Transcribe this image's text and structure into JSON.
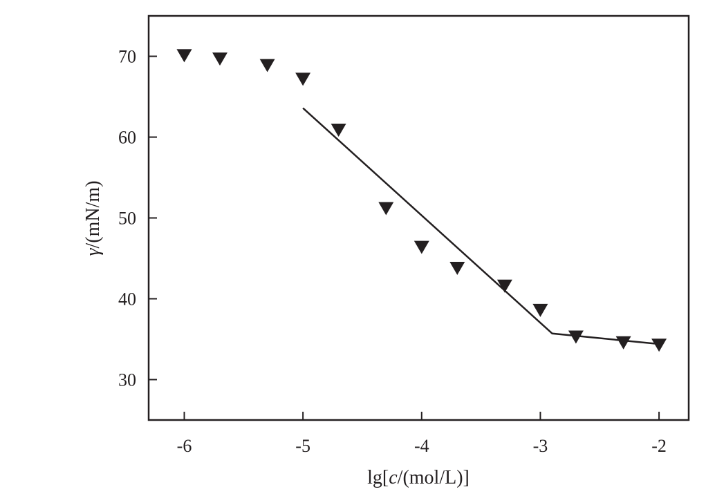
{
  "chart_data": {
    "type": "scatter",
    "xlabel_parts": [
      "lg[",
      "c",
      "/(mol/L)]"
    ],
    "ylabel_parts": [
      "γ",
      "/(mN/m)"
    ],
    "xlim": [
      -6.3,
      -1.75
    ],
    "ylim": [
      25,
      75
    ],
    "xticks": [
      -6,
      -5,
      -4,
      -3,
      -2
    ],
    "xtick_labels": [
      "-6",
      "-5",
      "-4",
      "-3",
      "-2"
    ],
    "yticks": [
      30,
      40,
      50,
      60,
      70
    ],
    "ytick_labels": [
      "30",
      "40",
      "50",
      "60",
      "70"
    ],
    "grid": false,
    "series": [
      {
        "marker": "triangle-down",
        "color": "#231f20",
        "points": [
          {
            "x": -6.0,
            "y": 70.1
          },
          {
            "x": -5.7,
            "y": 69.7
          },
          {
            "x": -5.3,
            "y": 68.9
          },
          {
            "x": -5.0,
            "y": 67.2
          },
          {
            "x": -4.7,
            "y": 60.9
          },
          {
            "x": -4.3,
            "y": 51.2
          },
          {
            "x": -4.0,
            "y": 46.4
          },
          {
            "x": -3.7,
            "y": 43.8
          },
          {
            "x": -3.3,
            "y": 41.6
          },
          {
            "x": -3.0,
            "y": 38.6
          },
          {
            "x": -2.7,
            "y": 35.3
          },
          {
            "x": -2.3,
            "y": 34.6
          },
          {
            "x": -2.0,
            "y": 34.3
          }
        ]
      }
    ],
    "fit_line": {
      "color": "#231f20",
      "points": [
        {
          "x": -5.0,
          "y": 63.6
        },
        {
          "x": -2.9,
          "y": 35.7
        },
        {
          "x": -2.0,
          "y": 34.4
        }
      ]
    }
  }
}
